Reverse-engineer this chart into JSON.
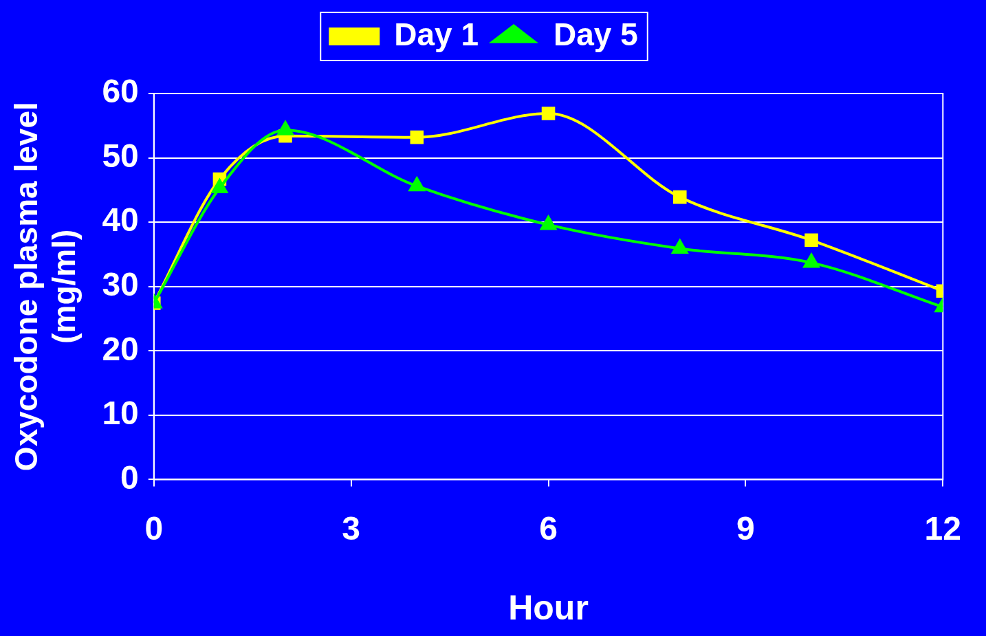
{
  "chart_data": {
    "type": "line",
    "xlabel": "Hour",
    "ylabel": "Oxycodone plasma level\n(mg/ml)",
    "series": [
      {
        "name": "Day 1",
        "color": "#ffff00",
        "marker": "square",
        "x": [
          0,
          1,
          2,
          4,
          6,
          8,
          10,
          12
        ],
        "values": [
          27.4,
          46.7,
          53.4,
          53.2,
          56.9,
          43.9,
          37.2,
          29.3
        ]
      },
      {
        "name": "Day 5",
        "color": "#00ff00",
        "marker": "triangle",
        "x": [
          0,
          1,
          2,
          4,
          6,
          8,
          10,
          12
        ],
        "values": [
          27.4,
          45.3,
          54.3,
          45.6,
          39.6,
          35.9,
          33.7,
          26.8
        ]
      }
    ],
    "xlim": [
      0,
      12
    ],
    "xticks": [
      0,
      3,
      6,
      9,
      12
    ],
    "ylim": [
      0,
      60
    ],
    "yticks": [
      0,
      10,
      20,
      30,
      40,
      50,
      60
    ],
    "grid": "y",
    "legend": "top",
    "line_style": "solid"
  }
}
